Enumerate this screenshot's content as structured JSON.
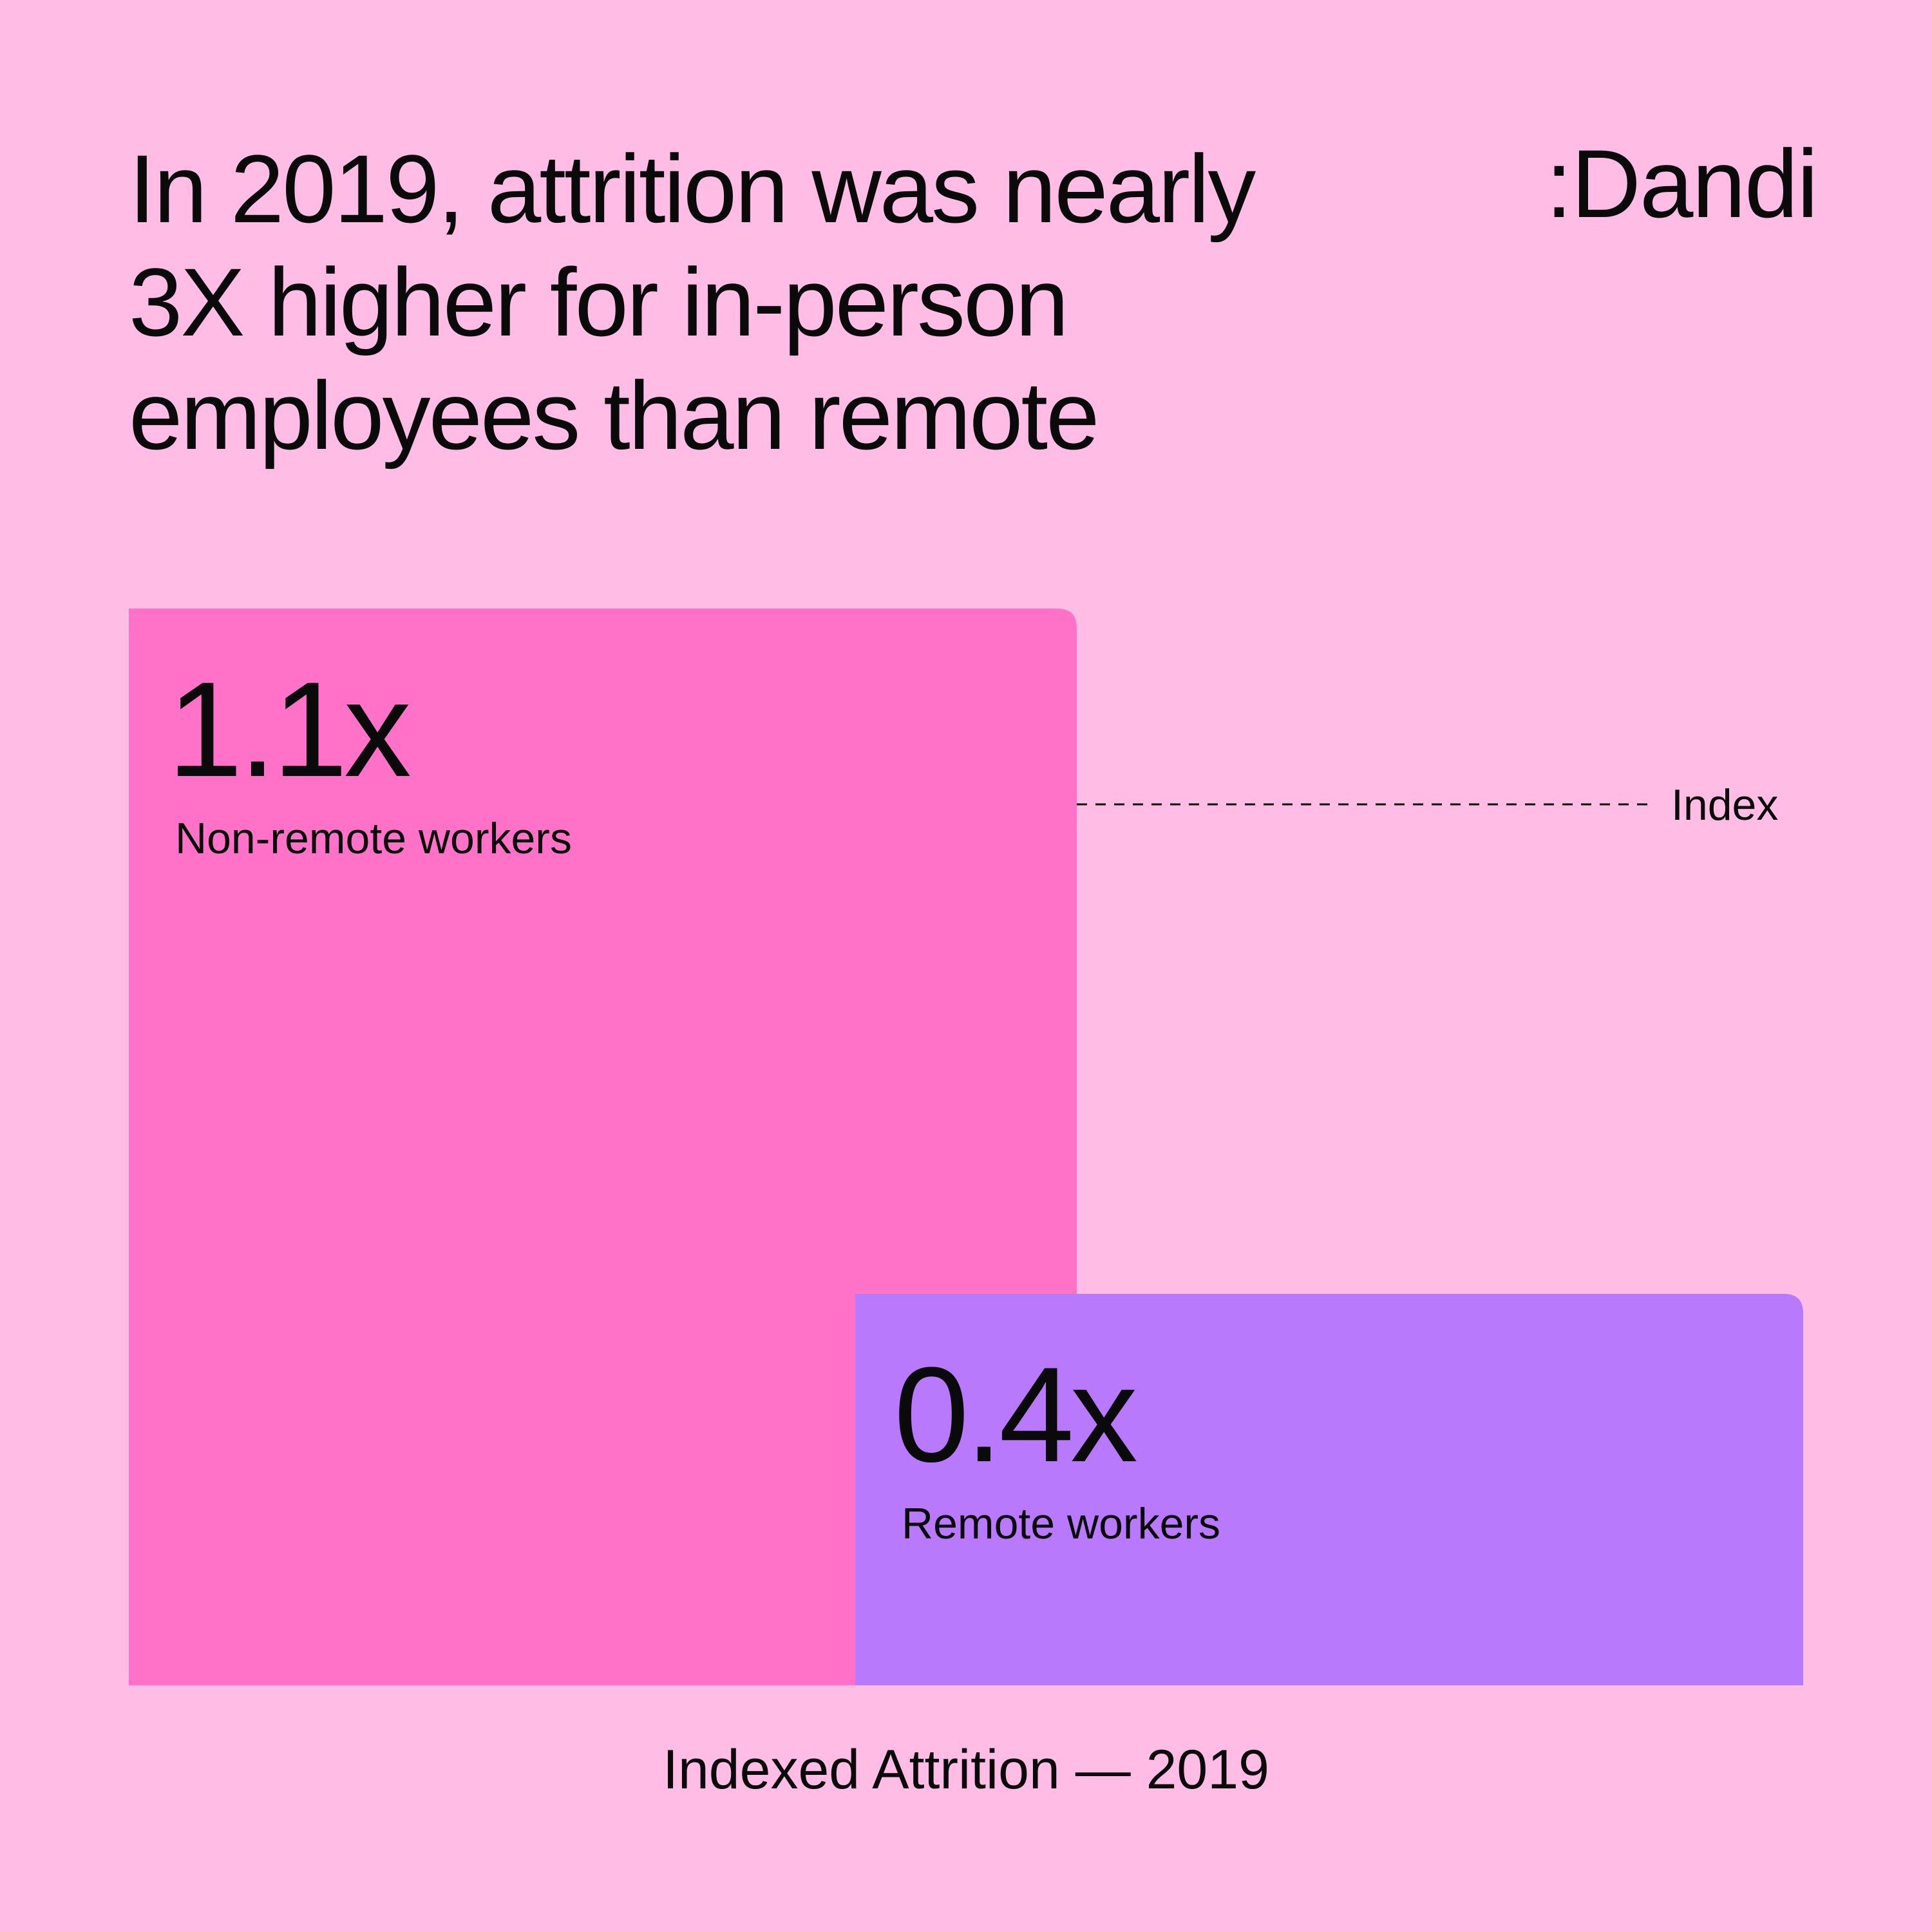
{
  "headline": "In 2019, attrition was nearly 3X higher for in-person employees than remote",
  "logo": ":Dandi",
  "colors": {
    "background": "#ffbde6",
    "non_remote": "#ff72c8",
    "remote": "#b879fd",
    "text": "#0a0a0a"
  },
  "chart_data": {
    "type": "bar",
    "title": "In 2019, attrition was nearly 3X higher for in-person employees than remote",
    "xlabel": "Indexed Attrition — 2019",
    "ylabel": "",
    "categories": [
      "Non-remote workers",
      "Remote workers"
    ],
    "values": [
      1.1,
      0.4
    ],
    "value_labels": [
      "1.1x",
      "0.4x"
    ],
    "reference_line": {
      "label": "Index",
      "value": 0.9
    },
    "ylim": [
      0,
      1.1
    ],
    "grid": false,
    "legend": "none"
  }
}
